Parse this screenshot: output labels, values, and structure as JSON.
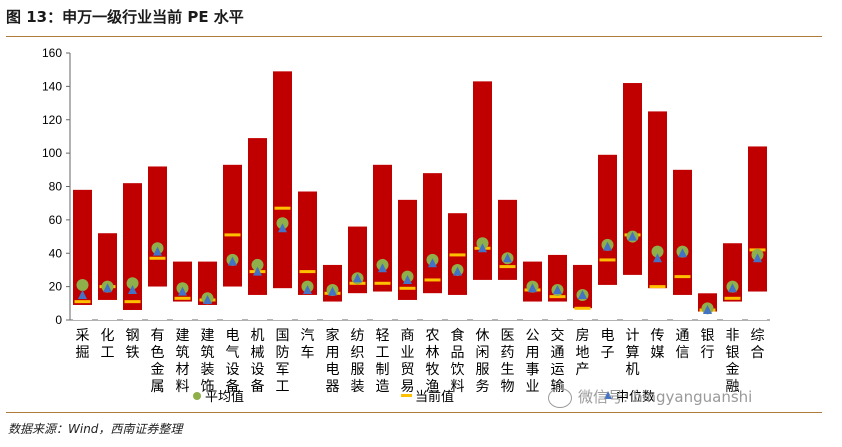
{
  "title": "图 13：申万一级行业当前 PE 水平",
  "source": "数据来源：Wind，西南证券整理",
  "watermark": "微信号: bingyanguanshi",
  "colors": {
    "bar": "#c00000",
    "mean": "#8faf4a",
    "current": "#ffc000",
    "median": "#4472c4"
  },
  "chart_data": {
    "type": "bar",
    "title": "申万一级行业当前 PE 水平",
    "xlabel": "",
    "ylabel": "",
    "ylim": [
      0,
      160
    ],
    "yticks": [
      0,
      20,
      40,
      60,
      80,
      100,
      120,
      140,
      160
    ],
    "categories": [
      "采掘",
      "化工",
      "钢铁",
      "有色金属",
      "建筑材料",
      "建筑装饰",
      "电气设备",
      "机械设备",
      "国防军工",
      "汽车",
      "家用电器",
      "纺织服装",
      "轻工制造",
      "商业贸易",
      "农林牧渔",
      "食品饮料",
      "休闲服务",
      "医药生物",
      "公用事业",
      "交通运输",
      "房地产",
      "电子",
      "计算机",
      "传媒",
      "通信",
      "银行",
      "非银金融",
      "综合"
    ],
    "series": [
      {
        "name": "PE 最大值",
        "values": [
          78,
          52,
          82,
          92,
          35,
          35,
          93,
          109,
          149,
          77,
          33,
          56,
          93,
          72,
          88,
          64,
          143,
          72,
          35,
          39,
          33,
          99,
          142,
          125,
          90,
          16,
          46,
          104
        ]
      },
      {
        "name": "PE 最小值",
        "values": [
          9,
          12,
          6,
          20,
          11,
          9,
          20,
          15,
          19,
          15,
          11,
          16,
          17,
          12,
          16,
          15,
          24,
          24,
          11,
          11,
          7,
          21,
          27,
          19,
          15,
          5,
          11,
          17
        ]
      },
      {
        "name": "平均值",
        "values": [
          21,
          20,
          22,
          43,
          19,
          13,
          36,
          33,
          58,
          20,
          18,
          25,
          33,
          26,
          36,
          30,
          46,
          37,
          20,
          18,
          15,
          45,
          50,
          41,
          41,
          7,
          20,
          39
        ]
      },
      {
        "name": "当前值",
        "values": [
          11,
          20,
          11,
          37,
          13,
          12,
          51,
          29,
          67,
          29,
          16,
          22,
          22,
          19,
          24,
          39,
          43,
          32,
          18,
          14,
          7,
          36,
          51,
          20,
          26,
          6,
          13,
          42
        ]
      },
      {
        "name": "中位数",
        "values": [
          15,
          19,
          18,
          41,
          17,
          12,
          35,
          29,
          55,
          18,
          17,
          25,
          31,
          24,
          34,
          29,
          43,
          37,
          19,
          18,
          15,
          44,
          50,
          37,
          40,
          6,
          19,
          37
        ]
      }
    ],
    "legend": [
      "平均值",
      "当前值",
      "中位数"
    ],
    "legend_position": "bottom"
  }
}
